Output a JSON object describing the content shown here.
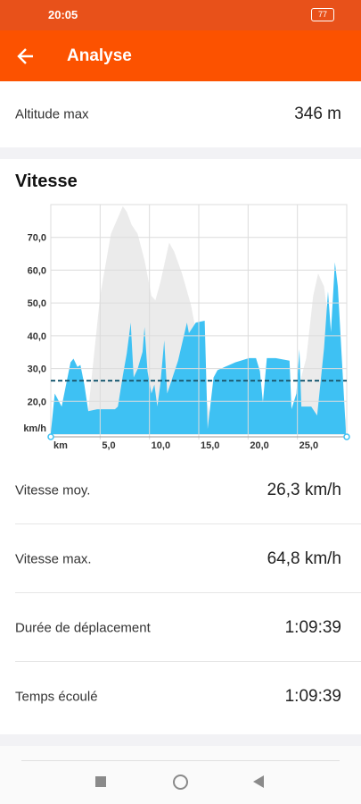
{
  "status_bar": {
    "time": "20:05",
    "battery": "77"
  },
  "header": {
    "title": "Analyse"
  },
  "altitude": {
    "label": "Altitude max",
    "value": "346 m"
  },
  "section_title": "Vitesse",
  "chart_data": {
    "type": "area",
    "y_unit": "km/h",
    "x_unit": "km",
    "xlim": [
      0,
      30
    ],
    "ylim": [
      10,
      80
    ],
    "xticks": [
      {
        "value": 5,
        "label": "5,0"
      },
      {
        "value": 10,
        "label": "10,0"
      },
      {
        "value": 15,
        "label": "15,0"
      },
      {
        "value": 20,
        "label": "20,0"
      },
      {
        "value": 25,
        "label": "25,0"
      }
    ],
    "yticks": [
      {
        "value": 20,
        "label": "20,0"
      },
      {
        "value": 30,
        "label": "30,0"
      },
      {
        "value": 40,
        "label": "40,0"
      },
      {
        "value": 50,
        "label": "50,0"
      },
      {
        "value": 60,
        "label": "60,0"
      },
      {
        "value": 70,
        "label": "70,0"
      }
    ],
    "grid": true,
    "average_line": 26.3,
    "average_line_color": "#1d5c73",
    "series": [
      {
        "color": "#ebebeb",
        "x": [
          0,
          2.9,
          3.8,
          5.0,
          6.1,
          7.3,
          7.7,
          8.2,
          8.8,
          9.5,
          10.2,
          10.6,
          11.1,
          11.6,
          12.0,
          12.5,
          13.3,
          14.2,
          14.9,
          15.6,
          16.5,
          20.1,
          24.6,
          25.9,
          26.6,
          27.1,
          27.7,
          28.4,
          29.1,
          29.9
        ],
        "values": [
          10,
          11,
          17.3,
          52.2,
          71.1,
          79.5,
          77.8,
          73.8,
          71.1,
          63.0,
          52.2,
          50.8,
          56.2,
          63.0,
          68.4,
          65.7,
          59.0,
          49.5,
          38.6,
          22.4,
          11.6,
          14.3,
          18.4,
          33.2,
          52.2,
          59.0,
          55.0,
          38.6,
          25.1,
          14.3
        ]
      },
      {
        "color": "#3ec1f3",
        "x": [
          0,
          0.4,
          1.1,
          2.0,
          2.3,
          2.7,
          3.0,
          3.4,
          3.8,
          4.7,
          6.5,
          6.8,
          7.3,
          7.7,
          8.1,
          8.4,
          8.8,
          9.3,
          9.5,
          9.8,
          10.2,
          10.5,
          10.8,
          11.1,
          11.5,
          11.8,
          12.1,
          12.9,
          13.8,
          14.0,
          14.7,
          15.6,
          15.9,
          16.5,
          16.9,
          18.7,
          20.1,
          20.8,
          21.2,
          21.5,
          21.9,
          22.8,
          24.2,
          24.4,
          24.9,
          25.2,
          25.4,
          26.4,
          27.0,
          27.7,
          28.1,
          28.4,
          28.8,
          29.1,
          29.5,
          29.9
        ],
        "values": [
          10.3,
          22.4,
          18.4,
          31.9,
          33.0,
          30.5,
          31.1,
          25.1,
          17.0,
          17.6,
          17.6,
          18.4,
          27.8,
          34.6,
          44.0,
          27.3,
          29.9,
          35.1,
          42.7,
          29.2,
          22.4,
          25.1,
          18.4,
          25.1,
          38.6,
          22.4,
          25.1,
          32.4,
          44.0,
          40.8,
          44.0,
          44.6,
          11.6,
          27.3,
          29.5,
          31.9,
          33.2,
          33.2,
          29.2,
          19.7,
          33.2,
          33.2,
          32.4,
          17.6,
          22.4,
          35.9,
          18.4,
          18.4,
          15.7,
          36.2,
          53.5,
          41.1,
          62.4,
          54.9,
          33.2,
          11.6
        ]
      }
    ]
  },
  "stats": [
    {
      "label": "Vitesse moy.",
      "value": "26,3 km/h"
    },
    {
      "label": "Vitesse max.",
      "value": "64,8 km/h"
    },
    {
      "label": "Durée de déplacement",
      "value": "1:09:39"
    },
    {
      "label": "Temps écoulé",
      "value": "1:09:39"
    }
  ]
}
